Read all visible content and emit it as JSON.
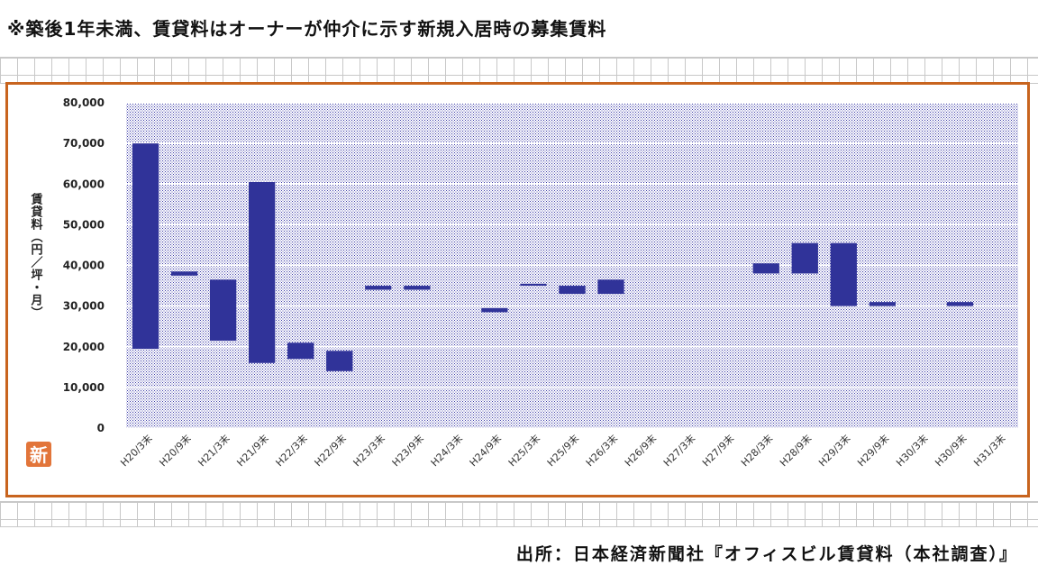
{
  "header": {
    "note": "※築後1年未満、賃貸料はオーナーが仲介に示す新規入居時の募集賃料"
  },
  "footer": {
    "source": "出所：日本経済新聞社『オフィスビル賃貸料（本社調査）』"
  },
  "logo": {
    "text": "新"
  },
  "chart_data": {
    "type": "bar",
    "subtype": "floating-range",
    "title": "",
    "xlabel": "",
    "ylabel": "賃貸料（円／坪・月）",
    "ylim": [
      0,
      80000
    ],
    "yticks": [
      0,
      10000,
      20000,
      30000,
      40000,
      50000,
      60000,
      70000,
      80000
    ],
    "ytick_labels": [
      "0",
      "10,000",
      "20,000",
      "30,000",
      "40,000",
      "50,000",
      "60,000",
      "70,000",
      "80,000"
    ],
    "grid": true,
    "legend": "none",
    "bar_color": "#303399",
    "plot_background": "dotted blue",
    "categories": [
      "H20/3末",
      "H20/9末",
      "H21/3末",
      "H21/9末",
      "H22/3末",
      "H22/9末",
      "H23/3末",
      "H23/9末",
      "H24/3末",
      "H24/9末",
      "H25/3末",
      "H25/9末",
      "H26/3末",
      "H26/9末",
      "H27/3末",
      "H27/9末",
      "H28/3末",
      "H28/9末",
      "H29/3末",
      "H29/9末",
      "H30/3末",
      "H30/9末",
      "H31/3末"
    ],
    "ranges": [
      [
        19500,
        70000
      ],
      [
        37500,
        38500
      ],
      [
        21500,
        36500
      ],
      [
        16000,
        60500
      ],
      [
        17000,
        21000
      ],
      [
        14000,
        19000
      ],
      [
        34000,
        35000
      ],
      [
        34000,
        35000
      ],
      null,
      [
        28500,
        29500
      ],
      [
        35000,
        35500
      ],
      [
        33000,
        35000
      ],
      [
        33000,
        36500
      ],
      null,
      null,
      null,
      [
        38000,
        40500
      ],
      [
        38000,
        45500
      ],
      [
        30000,
        45500
      ],
      [
        30000,
        31000
      ],
      null,
      [
        30000,
        31000
      ],
      null
    ]
  }
}
